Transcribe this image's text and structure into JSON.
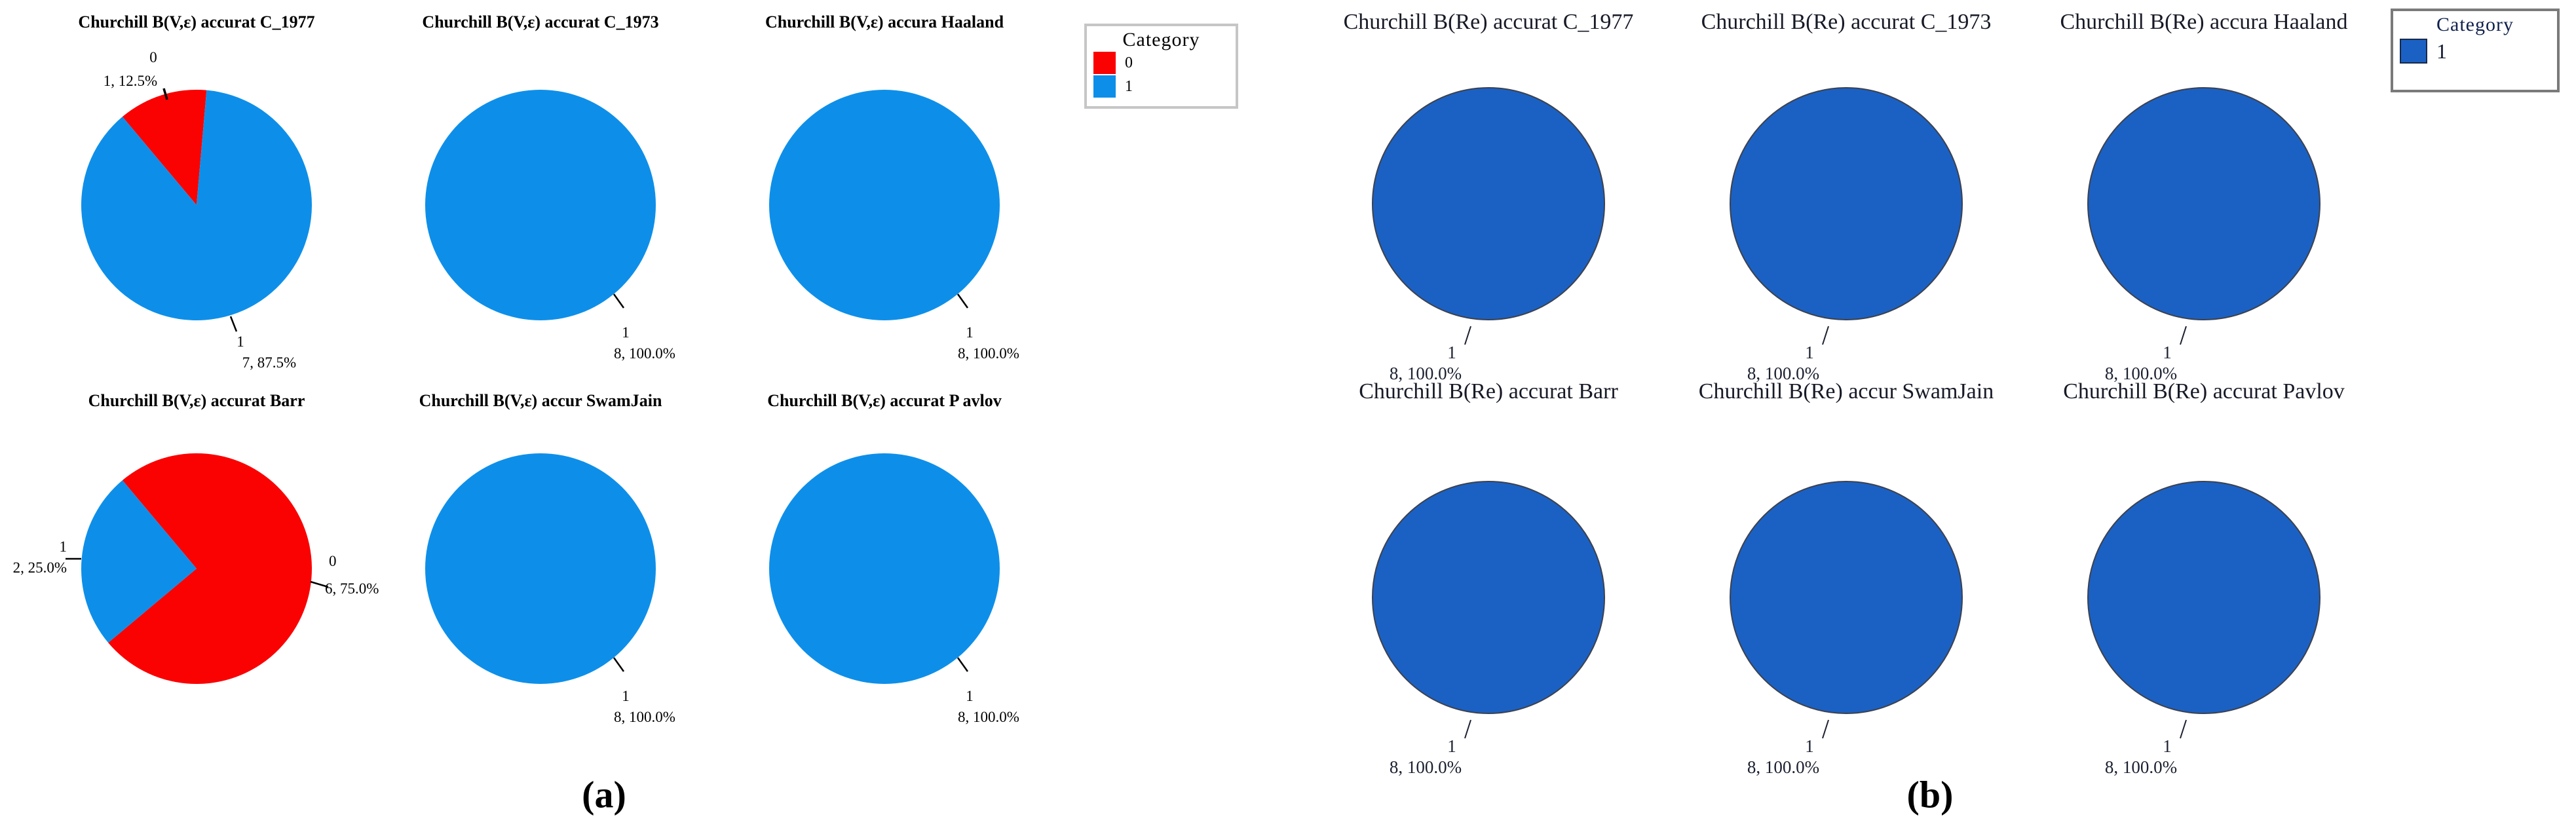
{
  "captions": {
    "a": "(a)",
    "b": "(b)"
  },
  "chart_data": [
    {
      "panel": "a",
      "type": "pie",
      "caption": "(a)",
      "start_angle_deg": -40,
      "colors": {
        "0": "#fa0202",
        "1": "#0d8fe9"
      },
      "outline": "none",
      "label_color": "#000000",
      "legend": {
        "title": "Category",
        "position": "top-right",
        "border_color": "#c6c6c6",
        "items": [
          {
            "label": "0",
            "category": "0",
            "color": "#fa0202"
          },
          {
            "label": "1",
            "category": "1",
            "color": "#0d8fe9"
          }
        ]
      },
      "pies": [
        {
          "title": "Churchill B(V,ε) accurat C_1977",
          "row": 0,
          "col": 0,
          "slices": [
            {
              "category": "0",
              "count": 1,
              "pct": 12.5
            },
            {
              "category": "1",
              "count": 7,
              "pct": 87.5
            }
          ],
          "labels": [
            {
              "style": "a-upleft",
              "lines": [
                "0",
                "1, 12.5%"
              ]
            },
            {
              "style": "a-lowright",
              "lines": [
                "1",
                "7, 87.5%"
              ]
            }
          ]
        },
        {
          "title": "Churchill B(V,ε) accurat C_1973",
          "row": 0,
          "col": 1,
          "slices": [
            {
              "category": "1",
              "count": 8,
              "pct": 100.0
            }
          ],
          "labels": [
            {
              "style": "a-100",
              "lines": [
                "1",
                "8, 100.0%"
              ]
            }
          ]
        },
        {
          "title": "Churchill B(V,ε) accura Haaland",
          "row": 0,
          "col": 2,
          "slices": [
            {
              "category": "1",
              "count": 8,
              "pct": 100.0
            }
          ],
          "labels": [
            {
              "style": "a-100",
              "lines": [
                "1",
                "8, 100.0%"
              ]
            }
          ]
        },
        {
          "title": "Churchill B(V,ε) accurat Barr",
          "row": 1,
          "col": 0,
          "slices": [
            {
              "category": "0",
              "count": 6,
              "pct": 75.0
            },
            {
              "category": "1",
              "count": 2,
              "pct": 25.0
            }
          ],
          "labels": [
            {
              "style": "a-right",
              "lines": [
                "0",
                "6, 75.0%"
              ]
            },
            {
              "style": "a-left",
              "lines": [
                "1",
                "2, 25.0%"
              ]
            }
          ]
        },
        {
          "title": "Churchill B(V,ε) accur SwamJain",
          "row": 1,
          "col": 1,
          "slices": [
            {
              "category": "1",
              "count": 8,
              "pct": 100.0
            }
          ],
          "labels": [
            {
              "style": "a-100",
              "lines": [
                "1",
                "8, 100.0%"
              ]
            }
          ]
        },
        {
          "title": "Churchill B(V,ε) accurat P avlov",
          "row": 1,
          "col": 2,
          "slices": [
            {
              "category": "1",
              "count": 8,
              "pct": 100.0
            }
          ],
          "labels": [
            {
              "style": "a-100",
              "lines": [
                "1",
                "8, 100.0%"
              ]
            }
          ]
        }
      ]
    },
    {
      "panel": "b",
      "type": "pie",
      "caption": "(b)",
      "start_angle_deg": 10,
      "colors": {
        "1": "#1b61c4"
      },
      "outline": "#3c414d",
      "label_color": "#1b2030",
      "legend": {
        "title": "Category",
        "position": "top-right",
        "border_color": "#7a7a7a",
        "items": [
          {
            "label": "1",
            "category": "1",
            "color": "#1b61c4"
          }
        ]
      },
      "pies": [
        {
          "title": "Churchill B(Re) accurat C_1977",
          "row": 0,
          "col": 0,
          "slices": [
            {
              "category": "1",
              "count": 8,
              "pct": 100.0
            }
          ],
          "labels": [
            {
              "style": "b-100",
              "lines": [
                "1",
                "8, 100.0%"
              ]
            }
          ]
        },
        {
          "title": "Churchill B(Re) accurat C_1973",
          "row": 0,
          "col": 1,
          "slices": [
            {
              "category": "1",
              "count": 8,
              "pct": 100.0
            }
          ],
          "labels": [
            {
              "style": "b-100",
              "lines": [
                "1",
                "8, 100.0%"
              ]
            }
          ]
        },
        {
          "title": "Churchill B(Re) accura Haaland",
          "row": 0,
          "col": 2,
          "slices": [
            {
              "category": "1",
              "count": 8,
              "pct": 100.0
            }
          ],
          "labels": [
            {
              "style": "b-100",
              "lines": [
                "1",
                "8, 100.0%"
              ]
            }
          ]
        },
        {
          "title": "Churchill B(Re) accurat Barr",
          "row": 1,
          "col": 0,
          "slices": [
            {
              "category": "1",
              "count": 8,
              "pct": 100.0
            }
          ],
          "labels": [
            {
              "style": "b-100",
              "lines": [
                "1",
                "8, 100.0%"
              ]
            }
          ]
        },
        {
          "title": "Churchill B(Re) accur SwamJain",
          "row": 1,
          "col": 1,
          "slices": [
            {
              "category": "1",
              "count": 8,
              "pct": 100.0
            }
          ],
          "labels": [
            {
              "style": "b-100",
              "lines": [
                "1",
                "8, 100.0%"
              ]
            }
          ]
        },
        {
          "title": "Churchill B(Re) accurat Pavlov",
          "row": 1,
          "col": 2,
          "slices": [
            {
              "category": "1",
              "count": 8,
              "pct": 100.0
            }
          ],
          "labels": [
            {
              "style": "b-100",
              "lines": [
                "1",
                "8, 100.0%"
              ]
            }
          ]
        }
      ]
    }
  ]
}
